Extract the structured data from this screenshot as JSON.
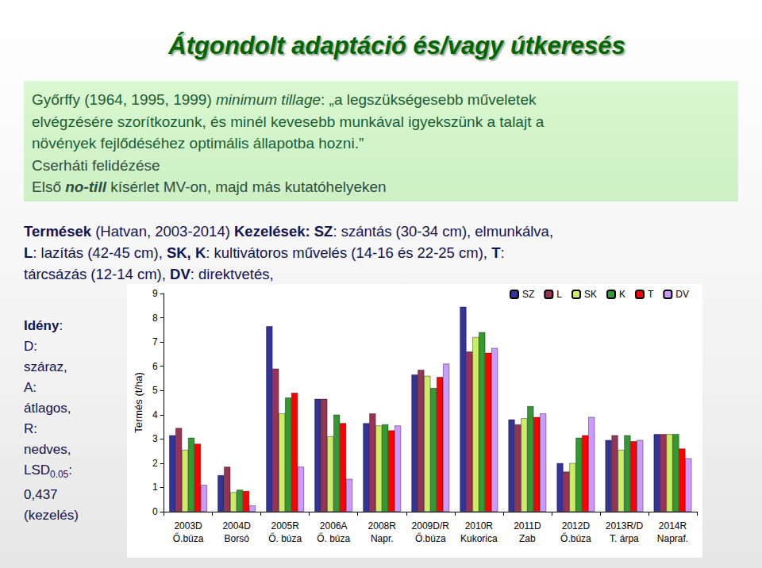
{
  "slide": {
    "title": "Átgondolt adaptáció és/vagy útkeresés",
    "box_lines": [
      [
        {
          "text": "Győrffy (1964, 1995, 1999) "
        },
        {
          "text": "minimum tillage",
          "italic": true
        },
        {
          "text": ": „a legszükségesebb műveletek"
        }
      ],
      [
        {
          "text": "elvégzésére szorítkozunk, és minél kevesebb munkával igyekszünk a talajt a"
        }
      ],
      [
        {
          "text": "növények fejlődéséhez optimális állapotba hozni.”"
        }
      ],
      [
        {
          "text": "Cserháti felidézése"
        }
      ],
      [
        {
          "text": "Első "
        },
        {
          "text": "no-till",
          "italic": true,
          "bold": true
        },
        {
          "text": " kísérlet MV-on, majd más kutatóhelyeken"
        }
      ]
    ],
    "treatment_lines": [
      [
        {
          "text": "Termések",
          "bold": true
        },
        {
          "text": " (Hatvan, 2003-2014) "
        },
        {
          "text": "Kezelések: SZ",
          "bold": true
        },
        {
          "text": ": szántás (30-34 cm), elmunkálva,"
        }
      ],
      [
        {
          "text": "L",
          "bold": true
        },
        {
          "text": ": lazítás (42-45 cm), "
        },
        {
          "text": "SK, K",
          "bold": true
        },
        {
          "text": ": kultivátoros művelés (14-16 és 22-25 cm), "
        },
        {
          "text": "T",
          "bold": true
        },
        {
          "text": ":"
        }
      ],
      [
        {
          "text": "tárcsázás (12-14 cm), "
        },
        {
          "text": "DV",
          "bold": true
        },
        {
          "text": ": direktvetés,"
        }
      ]
    ],
    "season_lines": [
      [
        {
          "text": "Idény",
          "bold": true
        },
        {
          "text": ":"
        }
      ],
      [
        {
          "text": "D:"
        }
      ],
      [
        {
          "text": "száraz,"
        }
      ],
      [
        {
          "text": "A:"
        }
      ],
      [
        {
          "text": "átlagos,"
        }
      ],
      [
        {
          "text": "R:"
        }
      ],
      [
        {
          "text": "nedves,"
        }
      ],
      [
        {
          "text": "LSD"
        },
        {
          "text": "0.05",
          "sub": true
        },
        {
          "text": ":"
        }
      ],
      [
        {
          "text": "0,437"
        }
      ],
      [
        {
          "text": "(kezelés)"
        }
      ]
    ]
  },
  "chart_data": {
    "type": "bar",
    "ylabel": "Termés (t/ha)",
    "categories": [
      "2003D\nŐ.búza",
      "2004D\nBorsó",
      "2005R\nŐ. búza",
      "2006A\nŐ. búza",
      "2008R\nNapr.",
      "2009D/R\nŐ.búza",
      "2010R\nKukorica",
      "2011D\nZab",
      "2012D\nŐ.búza",
      "2013R/D\nT. árpa",
      "2014R\nNapraf."
    ],
    "series": [
      {
        "name": "SZ",
        "color": "#333399",
        "values": [
          3.15,
          1.5,
          7.65,
          4.65,
          3.65,
          5.65,
          8.45,
          3.8,
          2.0,
          2.95,
          3.2
        ]
      },
      {
        "name": "L",
        "color": "#993355",
        "values": [
          3.45,
          1.85,
          5.9,
          4.65,
          4.05,
          5.85,
          6.6,
          3.6,
          1.65,
          3.15,
          3.2
        ]
      },
      {
        "name": "SK",
        "color": "#ccee66",
        "values": [
          2.55,
          0.8,
          4.05,
          3.1,
          3.55,
          5.6,
          7.2,
          3.85,
          2.0,
          2.55,
          3.2
        ]
      },
      {
        "name": "K",
        "color": "#339933",
        "values": [
          3.05,
          0.9,
          4.7,
          4.0,
          3.6,
          5.1,
          7.4,
          4.35,
          3.05,
          3.15,
          3.2
        ]
      },
      {
        "name": "T",
        "color": "#ff0000",
        "values": [
          2.8,
          0.85,
          4.9,
          3.65,
          3.35,
          5.55,
          6.55,
          3.9,
          3.15,
          2.9,
          2.6
        ]
      },
      {
        "name": "DV",
        "color": "#cc99ff",
        "values": [
          1.1,
          0.25,
          1.85,
          1.35,
          3.55,
          6.1,
          6.75,
          4.05,
          3.9,
          2.95,
          2.2
        ]
      }
    ],
    "ylim": [
      0,
      9
    ],
    "yticks": [
      0,
      1,
      2,
      3,
      4,
      5,
      6,
      7,
      8,
      9
    ],
    "grid": false,
    "legend": "upper right"
  }
}
